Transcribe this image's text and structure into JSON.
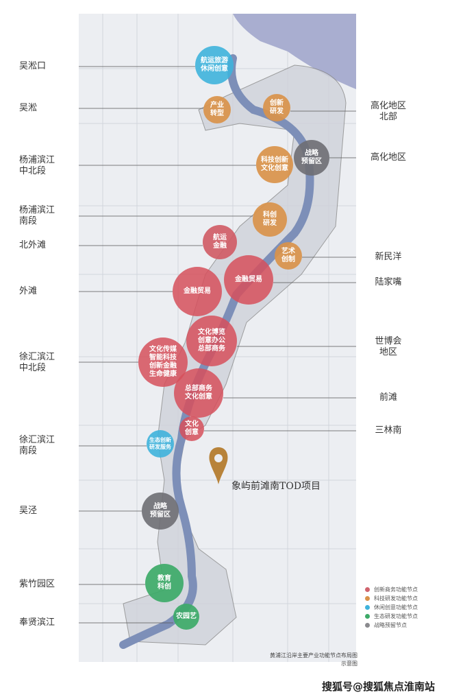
{
  "left_labels": [
    "吴淞口",
    "吴淞",
    "杨浦滨江\n中北段",
    "杨浦滨江\n南段",
    "北外滩",
    "外滩",
    "徐汇滨江\n中北段",
    "徐汇滨江\n南段",
    "吴泾",
    "紫竹园区",
    "奉贤滨江"
  ],
  "right_labels": [
    "高化地区\n北部",
    "高化地区",
    "新民洋",
    "陆家嘴",
    "世博会\n地区",
    "前滩",
    "三林南"
  ],
  "nodes": [
    {
      "text": "航运旅游\n休闲创意",
      "type": "leisure"
    },
    {
      "text": "产业\n转型",
      "type": "tech"
    },
    {
      "text": "创新\n研发",
      "type": "tech"
    },
    {
      "text": "科技创新\n文化创意",
      "type": "tech"
    },
    {
      "text": "战略\n预留区",
      "type": "reserve"
    },
    {
      "text": "科创\n研发",
      "type": "tech"
    },
    {
      "text": "航运\n金融",
      "type": "business"
    },
    {
      "text": "艺术\n创制",
      "type": "tech"
    },
    {
      "text": "金融贸易",
      "type": "business"
    },
    {
      "text": "金融贸易",
      "type": "business"
    },
    {
      "text": "文化博览\n创意办公\n总部商务",
      "type": "business"
    },
    {
      "text": "文化传媒\n智能科技\n创新金融\n生命健康",
      "type": "business"
    },
    {
      "text": "总部商务\n文化创意",
      "type": "business"
    },
    {
      "text": "文化\n创意",
      "type": "business"
    },
    {
      "text": "生态创新\n研发服务",
      "type": "leisure"
    },
    {
      "text": "战略\n预留区",
      "type": "reserve"
    },
    {
      "text": "教育\n科创",
      "type": "eco"
    },
    {
      "text": "农园艺",
      "type": "eco"
    }
  ],
  "project": {
    "label": "象屿前滩南TOD项目",
    "icon": "map-pin-icon",
    "color": "#b8833a"
  },
  "legend": [
    {
      "label": "创新商务功能节点",
      "color": "#d0646e"
    },
    {
      "label": "科技研发功能节点",
      "color": "#d9924a"
    },
    {
      "label": "休闲创意功能节点",
      "color": "#3fb3dc"
    },
    {
      "label": "生态研发功能节点",
      "color": "#3daa68"
    },
    {
      "label": "战略预留节点",
      "color": "#8a8a8e"
    }
  ],
  "caption": {
    "line1": "黄浦江沿岸主要产业功能节点布局图",
    "line2": "示意图"
  },
  "watermark": "搜狐号@搜狐焦点淮南站",
  "colors": {
    "river": "#7d8fb8",
    "sea": "#a9aed0",
    "land": "#eceef2"
  }
}
